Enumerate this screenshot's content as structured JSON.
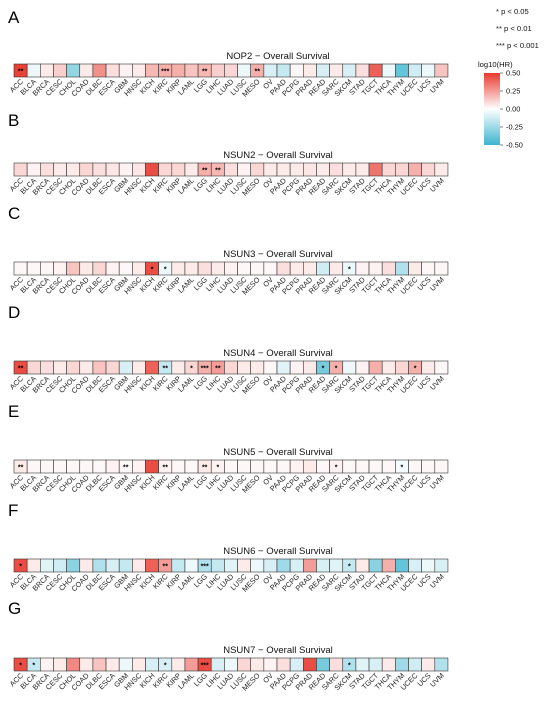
{
  "significance_key": [
    {
      "stars": "*",
      "text": "p < 0.05"
    },
    {
      "stars": "**",
      "text": "p < 0.01"
    },
    {
      "stars": "***",
      "text": "p < 0.001"
    }
  ],
  "legend": {
    "title": "log10(HR)",
    "ticks": [
      0.5,
      0.25,
      0.0,
      -0.25,
      -0.5
    ],
    "tick_labels": [
      "0.50",
      "0.25",
      "0.00",
      "-0.25",
      "-0.50"
    ],
    "colors": {
      "high": "#e8392e",
      "mid": "#ffffff",
      "low": "#3db5cf"
    }
  },
  "chart_data": [
    {
      "type": "heatmap",
      "panel": "A",
      "title": "NOP2 − Overall Survival",
      "categories": [
        "ACC",
        "BLCA",
        "BRCA",
        "CESC",
        "CHOL",
        "COAD",
        "DLBC",
        "ESCA",
        "GBM",
        "HNSC",
        "KICH",
        "KIRC",
        "KIRP",
        "LAML",
        "LGG",
        "LIHC",
        "LUAD",
        "LUSC",
        "MESO",
        "OV",
        "PAAD",
        "PCPG",
        "PRAD",
        "READ",
        "SARC",
        "SKCM",
        "STAD",
        "TGCT",
        "THCA",
        "THYM",
        "UCEC",
        "UCS",
        "UVM"
      ],
      "values": [
        0.48,
        -0.05,
        0.05,
        0.12,
        -0.28,
        0.05,
        0.28,
        0.08,
        0.03,
        0.05,
        0.18,
        0.2,
        0.2,
        0.15,
        0.18,
        0.12,
        0.1,
        -0.05,
        0.2,
        -0.1,
        -0.15,
        0.02,
        0.05,
        -0.1,
        0.05,
        -0.1,
        0.08,
        0.4,
        -0.05,
        -0.4,
        -0.12,
        -0.05,
        0.15
      ],
      "stars": [
        "**",
        "",
        "",
        "",
        "",
        "",
        "",
        "",
        "",
        "",
        "",
        "***",
        "",
        "",
        "**",
        "",
        "",
        "",
        "**",
        "",
        "",
        "",
        "",
        "",
        "",
        "",
        "",
        "",
        "",
        "",
        "",
        "",
        ""
      ]
    },
    {
      "type": "heatmap",
      "panel": "B",
      "title": "NSUN2 − Overall Survival",
      "categories": [
        "ACC",
        "BLCA",
        "BRCA",
        "CESC",
        "CHOL",
        "COAD",
        "DLBC",
        "ESCA",
        "GBM",
        "HNSC",
        "KICH",
        "KIRC",
        "KIRP",
        "LAML",
        "LGG",
        "LIHC",
        "LUAD",
        "LUSC",
        "MESO",
        "OV",
        "PAAD",
        "PCPG",
        "PRAD",
        "READ",
        "SARC",
        "SKCM",
        "STAD",
        "TGCT",
        "THCA",
        "THYM",
        "UCEC",
        "UCS",
        "UVM"
      ],
      "values": [
        0.1,
        0.03,
        0.08,
        0.05,
        0.05,
        0.1,
        0.08,
        0.06,
        0.03,
        0.06,
        0.45,
        0.1,
        0.1,
        0.05,
        0.2,
        0.18,
        0.08,
        0.03,
        0.1,
        0.05,
        0.05,
        0.05,
        0.06,
        0.05,
        0.08,
        0.05,
        0.05,
        0.35,
        0.1,
        0.1,
        0.2,
        0.1,
        0.05
      ],
      "stars": [
        "",
        "",
        "",
        "",
        "",
        "",
        "",
        "",
        "",
        "",
        "",
        "",
        "",
        "",
        "**",
        "**",
        "",
        "",
        "",
        "",
        "",
        "",
        "",
        "",
        "",
        "",
        "",
        "",
        "",
        "",
        "",
        "",
        ""
      ]
    },
    {
      "type": "heatmap",
      "panel": "C",
      "title": "NSUN3 − Overall Survival",
      "categories": [
        "ACC",
        "BLCA",
        "BRCA",
        "CESC",
        "CHOL",
        "COAD",
        "DLBC",
        "ESCA",
        "GBM",
        "HNSC",
        "KICH",
        "KIRC",
        "KIRP",
        "LAML",
        "LGG",
        "LIHC",
        "LUAD",
        "LUSC",
        "MESO",
        "OV",
        "PAAD",
        "PCPG",
        "PRAD",
        "READ",
        "SARC",
        "SKCM",
        "STAD",
        "TGCT",
        "THCA",
        "THYM",
        "UCEC",
        "UCS",
        "UVM"
      ],
      "values": [
        0.02,
        0.02,
        0.02,
        0.03,
        0.15,
        0.05,
        0.1,
        0.03,
        0.02,
        0.05,
        0.45,
        -0.05,
        0.05,
        0.05,
        0.08,
        0.05,
        0.03,
        0.02,
        0.02,
        0.02,
        0.08,
        0.05,
        0.05,
        -0.12,
        0.05,
        -0.05,
        0.03,
        0.03,
        0.08,
        -0.2,
        0.05,
        0.02,
        0.02
      ],
      "stars": [
        "",
        "",
        "",
        "",
        "",
        "",
        "",
        "",
        "",
        "",
        "*",
        "*",
        "",
        "",
        "",
        "",
        "",
        "",
        "",
        "",
        "",
        "",
        "",
        "",
        "",
        "*",
        "",
        "",
        "",
        "",
        "",
        "",
        ""
      ]
    },
    {
      "type": "heatmap",
      "panel": "D",
      "title": "NSUN4 − Overall Survival",
      "categories": [
        "ACC",
        "BLCA",
        "BRCA",
        "CESC",
        "CHOL",
        "COAD",
        "DLBC",
        "ESCA",
        "GBM",
        "HNSC",
        "KICH",
        "KIRC",
        "KIRP",
        "LAML",
        "LGG",
        "LIHC",
        "LUAD",
        "LUSC",
        "MESO",
        "OV",
        "PAAD",
        "PCPG",
        "PRAD",
        "READ",
        "SARC",
        "SKCM",
        "STAD",
        "TGCT",
        "THCA",
        "THYM",
        "UCEC",
        "UCS",
        "UVM"
      ],
      "values": [
        0.45,
        0.1,
        0.08,
        0.05,
        0.1,
        0.05,
        0.15,
        0.1,
        -0.1,
        0.05,
        0.4,
        -0.15,
        0.05,
        0.1,
        0.2,
        0.25,
        0.1,
        0.05,
        0.05,
        0.02,
        -0.08,
        0.03,
        0.05,
        -0.35,
        0.2,
        -0.05,
        0.03,
        0.2,
        0.05,
        0.1,
        0.2,
        0.05,
        0.02
      ],
      "stars": [
        "**",
        "",
        "",
        "",
        "",
        "",
        "",
        "",
        "",
        "",
        "",
        "**",
        "",
        "*",
        "***",
        "**",
        "",
        "",
        "",
        "",
        "",
        "",
        "",
        "*",
        "*",
        "",
        "",
        "",
        "",
        "",
        "*",
        "",
        ""
      ]
    },
    {
      "type": "heatmap",
      "panel": "E",
      "title": "NSUN5 − Overall Survival",
      "categories": [
        "ACC",
        "BLCA",
        "BRCA",
        "CESC",
        "CHOL",
        "COAD",
        "DLBC",
        "ESCA",
        "GBM",
        "HNSC",
        "KICH",
        "KIRC",
        "KIRP",
        "LAML",
        "LGG",
        "LIHC",
        "LUAD",
        "LUSC",
        "MESO",
        "OV",
        "PAAD",
        "PCPG",
        "PRAD",
        "READ",
        "SARC",
        "SKCM",
        "STAD",
        "TGCT",
        "THCA",
        "THYM",
        "UCEC",
        "UCS",
        "UVM"
      ],
      "values": [
        0.05,
        0.02,
        0.02,
        0.02,
        0.02,
        0.02,
        0.02,
        0.03,
        0.02,
        0.03,
        0.45,
        0.03,
        0.02,
        0.02,
        0.05,
        0.03,
        0.02,
        0.02,
        0.02,
        0.02,
        0.02,
        0.03,
        0.05,
        0.02,
        0.03,
        0.02,
        0.02,
        0.02,
        0.02,
        -0.03,
        0.02,
        0.02,
        0.02
      ],
      "stars": [
        "**",
        "",
        "",
        "",
        "",
        "",
        "",
        "",
        "**",
        "",
        "",
        "**",
        "",
        "",
        "**",
        "*",
        "",
        "",
        "",
        "",
        "",
        "",
        "",
        "",
        "*",
        "",
        "",
        "",
        "",
        "*",
        "",
        "",
        ""
      ]
    },
    {
      "type": "heatmap",
      "panel": "F",
      "title": "NSUN6 − Overall Survival",
      "categories": [
        "ACC",
        "BLCA",
        "BRCA",
        "CESC",
        "CHOL",
        "COAD",
        "DLBC",
        "ESCA",
        "GBM",
        "HNSC",
        "KICH",
        "KIRC",
        "KIRP",
        "LAML",
        "LGG",
        "LIHC",
        "LUAD",
        "LUSC",
        "MESO",
        "OV",
        "PAAD",
        "PCPG",
        "PRAD",
        "READ",
        "SARC",
        "SKCM",
        "STAD",
        "TGCT",
        "THCA",
        "THYM",
        "UCEC",
        "UCS",
        "UVM"
      ],
      "values": [
        0.45,
        0.05,
        -0.08,
        -0.12,
        -0.3,
        0.05,
        -0.2,
        -0.1,
        -0.15,
        0.05,
        0.4,
        0.25,
        -0.15,
        -0.05,
        -0.2,
        -0.15,
        -0.08,
        0.05,
        -0.05,
        -0.1,
        -0.25,
        -0.1,
        0.25,
        -0.1,
        -0.08,
        -0.15,
        0.05,
        -0.3,
        0.2,
        -0.4,
        -0.1,
        -0.05,
        -0.1
      ],
      "stars": [
        "*",
        "",
        "",
        "",
        "",
        "",
        "",
        "",
        "",
        "",
        "",
        "**",
        "",
        "",
        "***",
        "",
        "",
        "",
        "",
        "",
        "",
        "",
        "",
        "",
        "",
        "*",
        "",
        "",
        "",
        "",
        "",
        "",
        ""
      ]
    },
    {
      "type": "heatmap",
      "panel": "G",
      "title": "NSUN7 − Overall Survival",
      "categories": [
        "ACC",
        "BLCA",
        "BRCA",
        "CESC",
        "CHOL",
        "COAD",
        "DLBC",
        "ESCA",
        "GBM",
        "HNSC",
        "KICH",
        "KIRC",
        "KIRP",
        "LAML",
        "LGG",
        "LIHC",
        "LUAD",
        "LUSC",
        "MESO",
        "OV",
        "PAAD",
        "PCPG",
        "PRAD",
        "READ",
        "SARC",
        "SKCM",
        "STAD",
        "TGCT",
        "THCA",
        "THYM",
        "UCEC",
        "UCS",
        "UVM"
      ],
      "values": [
        0.45,
        -0.15,
        0.03,
        0.05,
        0.3,
        0.05,
        0.15,
        0.05,
        -0.05,
        0.05,
        -0.1,
        -0.1,
        0.05,
        0.25,
        0.45,
        -0.1,
        -0.05,
        0.1,
        0.05,
        0.03,
        0.08,
        -0.1,
        0.45,
        -0.35,
        0.08,
        -0.2,
        -0.08,
        -0.1,
        0.05,
        -0.25,
        -0.12,
        0.05,
        -0.2
      ],
      "stars": [
        "*",
        "*",
        "",
        "",
        "",
        "",
        "",
        "",
        "",
        "",
        "",
        "*",
        "",
        "",
        "***",
        "",
        "",
        "",
        "",
        "",
        "",
        "",
        "",
        "",
        "",
        "*",
        "",
        "",
        "",
        "",
        "",
        "",
        ""
      ]
    }
  ]
}
